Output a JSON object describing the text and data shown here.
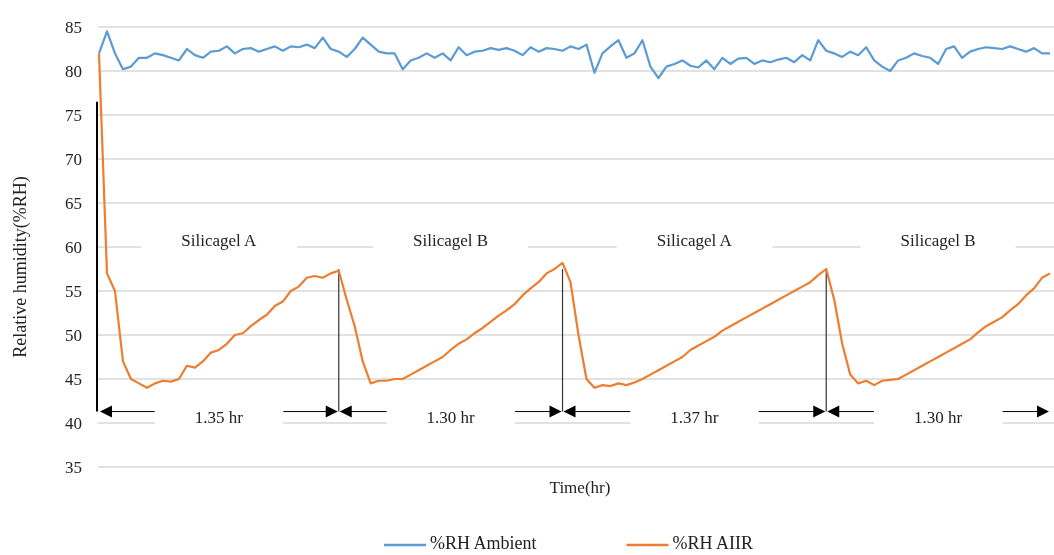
{
  "chart_data": {
    "type": "line",
    "xlabel": "Time(hr)",
    "ylabel": "Relative humidity(%RH)",
    "categories": [
      null,
      null,
      null,
      null,
      null,
      null,
      null,
      null,
      null,
      null,
      null,
      null,
      null,
      null,
      null,
      null,
      null,
      null,
      null,
      null,
      null,
      null,
      null,
      null,
      null,
      null,
      null,
      null,
      null,
      null,
      null,
      null,
      null,
      null,
      null,
      null,
      null,
      null,
      null,
      null,
      null,
      null,
      null,
      null,
      null,
      null,
      null,
      null,
      null,
      null,
      null,
      null,
      null,
      null,
      null,
      null,
      null,
      null,
      null,
      null,
      null,
      null,
      null,
      null,
      null,
      null,
      null,
      null,
      null,
      null,
      null,
      null,
      null,
      null,
      null,
      null,
      null,
      null,
      null,
      null,
      null,
      null,
      null,
      null,
      null,
      null,
      null,
      null,
      null,
      null,
      null,
      null,
      null,
      null,
      null,
      null,
      null,
      null,
      null,
      null,
      null,
      null,
      null,
      null,
      null,
      null,
      null,
      null,
      null,
      null,
      null,
      null,
      null,
      null,
      null,
      null,
      null,
      null,
      null,
      null
    ],
    "series": [
      {
        "name": "%RH Ambient",
        "color": "#5b9bd5",
        "values": [
          82,
          84.5,
          82,
          80.2,
          80.5,
          81.5,
          81.5,
          82,
          81.8,
          81.5,
          81.2,
          82.5,
          81.8,
          81.5,
          82.2,
          82.3,
          82.8,
          82,
          82.5,
          82.6,
          82.2,
          82.5,
          82.8,
          82.3,
          82.8,
          82.7,
          83,
          82.6,
          83.8,
          82.5,
          82.2,
          81.6,
          82.5,
          83.8,
          83,
          82.2,
          82,
          82,
          80.2,
          81.2,
          81.5,
          82,
          81.5,
          82,
          81.2,
          82.7,
          81.8,
          82.2,
          82.3,
          82.6,
          82.4,
          82.6,
          82.3,
          81.8,
          82.7,
          82.2,
          82.6,
          82.5,
          82.3,
          82.8,
          82.5,
          83,
          79.8,
          82,
          82.8,
          83.5,
          81.5,
          82,
          83.5,
          80.5,
          79.2,
          80.5,
          80.8,
          81.2,
          80.6,
          80.4,
          81.2,
          80.2,
          81.5,
          80.8,
          81.4,
          81.5,
          80.8,
          81.2,
          81,
          81.3,
          81.5,
          81,
          81.8,
          81.2,
          83.5,
          82.3,
          82,
          81.6,
          82.2,
          81.8,
          82.7,
          81.2,
          80.5,
          80,
          81.2,
          81.5,
          82,
          81.7,
          81.5,
          80.8,
          82.5,
          82.8,
          81.5,
          82.2,
          82.5,
          82.7,
          82.6,
          82.5,
          82.8,
          82.5,
          82.2,
          82.6,
          82,
          82
        ]
      },
      {
        "name": "%RH  AIIR",
        "color": "#ed7d31",
        "values": [
          82,
          57,
          55,
          47,
          45,
          44.5,
          44,
          44.5,
          44.8,
          44.7,
          45,
          46.5,
          46.3,
          47,
          48,
          48.3,
          49,
          50,
          50.2,
          51,
          51.7,
          52.3,
          53.3,
          53.8,
          55,
          55.5,
          56.5,
          56.7,
          56.5,
          57,
          57.3,
          54,
          51,
          47,
          44.5,
          44.8,
          44.8,
          45,
          45,
          45.5,
          46,
          46.5,
          47,
          47.5,
          48.3,
          49,
          49.5,
          50.2,
          50.8,
          51.5,
          52.2,
          52.8,
          53.5,
          54.5,
          55.3,
          56,
          57,
          57.5,
          58.2,
          56,
          50,
          45,
          44,
          44.3,
          44.2,
          44.5,
          44.3,
          44.6,
          45,
          45.5,
          46,
          46.5,
          47,
          47.5,
          48.3,
          48.8,
          49.3,
          49.8,
          50.5,
          51,
          51.5,
          52,
          52.5,
          53,
          53.5,
          54,
          54.5,
          55,
          55.5,
          56,
          56.8,
          57.5,
          54,
          49,
          45.5,
          44.5,
          44.8,
          44.3,
          44.8,
          44.9,
          45,
          45.5,
          46,
          46.5,
          47,
          47.5,
          48,
          48.5,
          49,
          49.5,
          50.3,
          51,
          51.5,
          52,
          52.8,
          53.5,
          54.5,
          55.3,
          56.5,
          57
        ]
      }
    ],
    "ylim": [
      35,
      85
    ],
    "yticks": [
      35,
      40,
      45,
      50,
      55,
      60,
      65,
      70,
      75,
      80,
      85
    ],
    "grid": "y",
    "legend": "bottom",
    "tick_labels": "y",
    "annotations": [
      "Silicagel  A",
      "Silicagel B",
      "Silicagel A",
      "Silicagel B",
      "1.35 hr",
      "1.30 hr",
      "1.37  hr",
      "1.30 hr"
    ]
  }
}
